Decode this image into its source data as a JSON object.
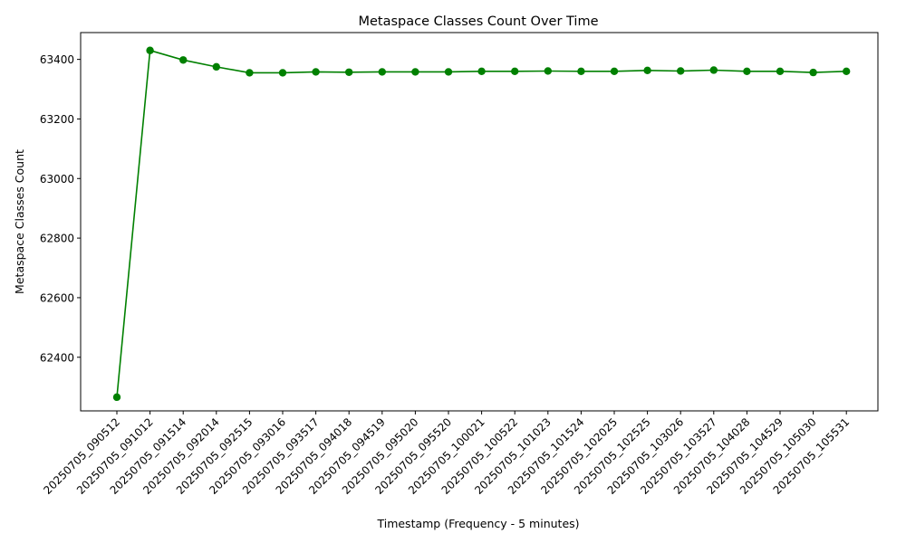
{
  "chart_data": {
    "type": "line",
    "title": "Metaspace Classes Count Over Time",
    "xlabel": "Timestamp (Frequency - 5 minutes)",
    "ylabel": "Metaspace Classes Count",
    "ylim": [
      62220,
      63490
    ],
    "yticks": [
      62400,
      62600,
      62800,
      63000,
      63200,
      63400
    ],
    "grid": false,
    "legend": "none",
    "line_color": "#008000",
    "marker": "circle",
    "categories": [
      "20250705_090512",
      "20250705_091012",
      "20250705_091514",
      "20250705_092014",
      "20250705_092515",
      "20250705_093016",
      "20250705_093517",
      "20250705_094018",
      "20250705_094519",
      "20250705_095020",
      "20250705_095520",
      "20250705_100021",
      "20250705_100522",
      "20250705_101023",
      "20250705_101524",
      "20250705_102025",
      "20250705_102525",
      "20250705_103026",
      "20250705_103527",
      "20250705_104028",
      "20250705_104529",
      "20250705_105030",
      "20250705_105531"
    ],
    "values": [
      62266,
      63430,
      63398,
      63375,
      63355,
      63355,
      63358,
      63357,
      63358,
      63358,
      63358,
      63360,
      63360,
      63361,
      63360,
      63360,
      63363,
      63361,
      63364,
      63360,
      63360,
      63356,
      63360
    ]
  }
}
